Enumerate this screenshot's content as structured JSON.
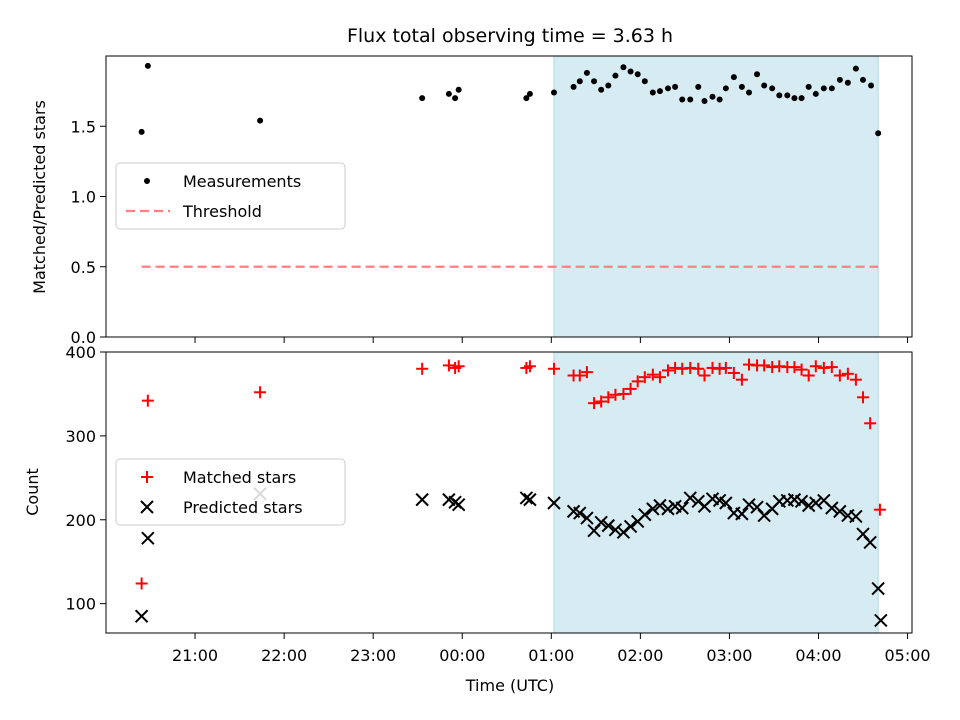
{
  "chart_data": {
    "title": "Flux total observing time = 3.63 h",
    "xlabel": "Time (UTC)",
    "x_unit": "hours (UTC; values past 24 are after midnight)",
    "x_ticks": [
      {
        "x": 21,
        "label": "21:00"
      },
      {
        "x": 22,
        "label": "22:00"
      },
      {
        "x": 23,
        "label": "23:00"
      },
      {
        "x": 24,
        "label": "00:00"
      },
      {
        "x": 25,
        "label": "01:00"
      },
      {
        "x": 26,
        "label": "02:00"
      },
      {
        "x": 27,
        "label": "03:00"
      },
      {
        "x": 28,
        "label": "04:00"
      },
      {
        "x": 29,
        "label": "05:00"
      }
    ],
    "xlim": [
      20.0,
      29.05
    ],
    "shaded_interval": [
      25.03,
      28.67
    ],
    "shade_color": "#add8e6",
    "top_panel": {
      "type": "scatter",
      "ylabel": "Matched/Predicted stars",
      "ylim": [
        0,
        2.0
      ],
      "yticks": [
        0.0,
        0.5,
        1.0,
        1.5
      ],
      "ytick_labels": [
        "0.0",
        "0.5",
        "1.0",
        "1.5"
      ],
      "legend_placement": "center-left",
      "legend": [
        {
          "label": "Measurements",
          "marker": "dot"
        },
        {
          "label": "Threshold",
          "marker": "dashed-line"
        }
      ],
      "threshold": {
        "value": 0.5,
        "x_range": [
          20.4,
          28.67
        ],
        "color": "#ff8080"
      },
      "measurements": {
        "color": "#000000",
        "x": [
          20.4,
          20.47,
          21.73,
          23.55,
          23.85,
          23.92,
          23.96,
          24.72,
          24.76,
          25.03,
          25.25,
          25.32,
          25.4,
          25.48,
          25.56,
          25.64,
          25.72,
          25.81,
          25.89,
          25.97,
          26.05,
          26.14,
          26.22,
          26.31,
          26.39,
          26.47,
          26.56,
          26.65,
          26.72,
          26.81,
          26.89,
          26.96,
          27.05,
          27.14,
          27.22,
          27.31,
          27.39,
          27.48,
          27.56,
          27.65,
          27.73,
          27.81,
          27.89,
          27.97,
          28.06,
          28.15,
          28.24,
          28.33,
          28.42,
          28.5,
          28.59,
          28.67
        ],
        "y": [
          1.46,
          1.93,
          1.54,
          1.7,
          1.73,
          1.7,
          1.76,
          1.7,
          1.73,
          1.74,
          1.78,
          1.82,
          1.88,
          1.82,
          1.76,
          1.79,
          1.86,
          1.92,
          1.89,
          1.87,
          1.82,
          1.74,
          1.75,
          1.77,
          1.78,
          1.69,
          1.69,
          1.78,
          1.68,
          1.71,
          1.69,
          1.77,
          1.85,
          1.78,
          1.74,
          1.87,
          1.79,
          1.77,
          1.72,
          1.72,
          1.7,
          1.7,
          1.78,
          1.73,
          1.77,
          1.77,
          1.83,
          1.81,
          1.91,
          1.83,
          1.79,
          1.45
        ]
      }
    },
    "bottom_panel": {
      "type": "scatter",
      "ylabel": "Count",
      "ylim": [
        65,
        400
      ],
      "yticks": [
        100,
        200,
        300,
        400
      ],
      "ytick_labels": [
        "100",
        "200",
        "300",
        "400"
      ],
      "legend_placement": "center-left",
      "series": [
        {
          "name": "Matched stars",
          "marker": "plus",
          "color": "#ff0000",
          "x": [
            20.4,
            20.47,
            21.73,
            23.55,
            23.85,
            23.92,
            23.96,
            24.72,
            24.76,
            25.03,
            25.25,
            25.32,
            25.4,
            25.48,
            25.56,
            25.64,
            25.72,
            25.81,
            25.89,
            25.97,
            26.05,
            26.14,
            26.22,
            26.31,
            26.39,
            26.47,
            26.56,
            26.65,
            26.72,
            26.81,
            26.89,
            26.96,
            27.05,
            27.14,
            27.22,
            27.31,
            27.39,
            27.48,
            27.56,
            27.65,
            27.73,
            27.81,
            27.89,
            27.97,
            28.06,
            28.15,
            28.24,
            28.33,
            28.42,
            28.5,
            28.58,
            28.69
          ],
          "y": [
            124,
            342,
            352,
            380,
            384,
            381,
            383,
            381,
            383,
            380,
            372,
            372,
            376,
            339,
            341,
            346,
            349,
            350,
            356,
            365,
            370,
            373,
            370,
            378,
            381,
            380,
            381,
            380,
            372,
            381,
            380,
            381,
            375,
            367,
            385,
            384,
            384,
            382,
            383,
            382,
            382,
            379,
            372,
            383,
            381,
            382,
            372,
            374,
            367,
            346,
            315,
            212
          ]
        },
        {
          "name": "Predicted stars",
          "marker": "x",
          "color": "#000000",
          "x": [
            20.4,
            20.47,
            21.73,
            23.55,
            23.85,
            23.92,
            23.96,
            24.72,
            24.76,
            25.03,
            25.25,
            25.32,
            25.4,
            25.48,
            25.56,
            25.64,
            25.72,
            25.81,
            25.89,
            25.97,
            26.05,
            26.14,
            26.22,
            26.31,
            26.39,
            26.47,
            26.56,
            26.65,
            26.72,
            26.81,
            26.89,
            26.96,
            27.05,
            27.14,
            27.22,
            27.31,
            27.39,
            27.48,
            27.56,
            27.65,
            27.73,
            27.81,
            27.89,
            27.97,
            28.06,
            28.15,
            28.24,
            28.33,
            28.42,
            28.5,
            28.58,
            28.67,
            28.7
          ],
          "y": [
            85,
            178,
            231,
            224,
            224,
            221,
            218,
            226,
            224,
            220,
            210,
            208,
            202,
            187,
            197,
            193,
            188,
            185,
            192,
            198,
            206,
            213,
            217,
            213,
            216,
            214,
            226,
            222,
            216,
            225,
            223,
            220,
            208,
            207,
            218,
            215,
            205,
            213,
            222,
            223,
            224,
            222,
            217,
            220,
            223,
            214,
            210,
            205,
            204,
            183,
            173,
            118,
            80
          ]
        }
      ]
    }
  }
}
